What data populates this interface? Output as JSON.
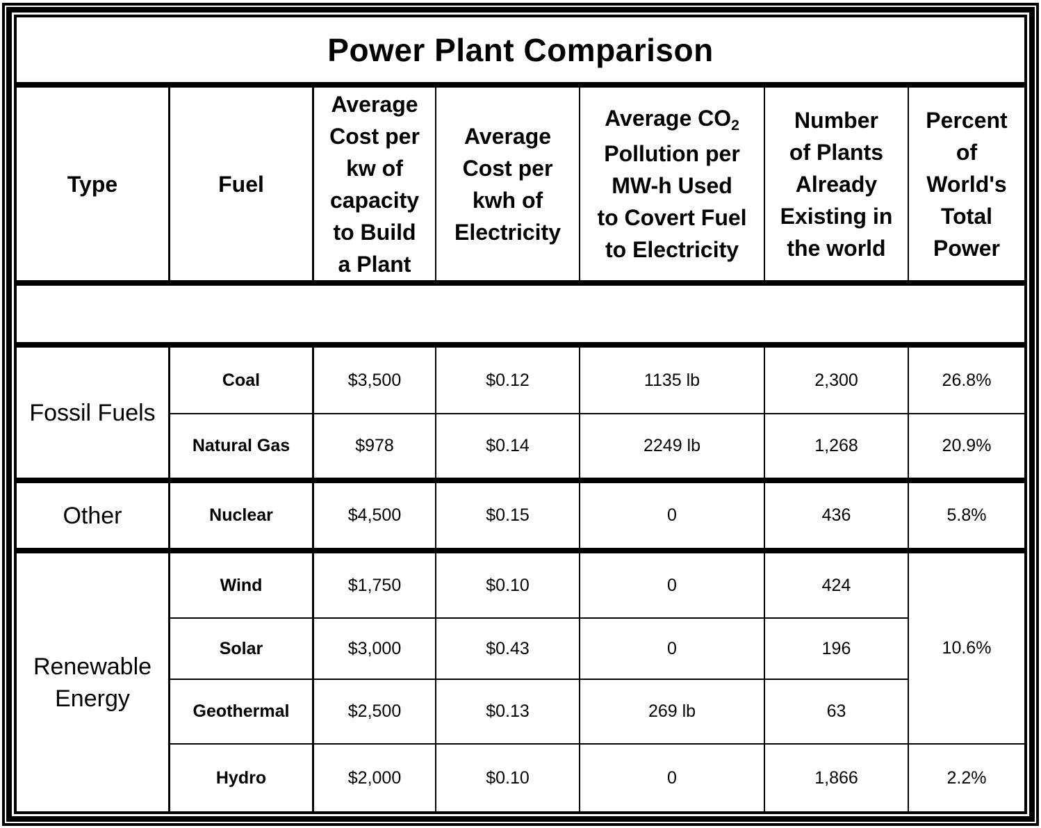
{
  "title": "Power Plant Comparison",
  "headers": {
    "type": "Type",
    "fuel": "Fuel",
    "cost_build": [
      "Average",
      "Cost per",
      "kw of",
      "capacity",
      "to Build",
      "a Plant"
    ],
    "cost_kwh": [
      "Average",
      "Cost per",
      "kwh of",
      "Electricity"
    ],
    "co2_line1_prefix": "Average CO",
    "co2_line1_sub": "2",
    "co2_rest": [
      "Pollution per",
      "MW-h Used",
      "to Covert Fuel",
      "to Electricity"
    ],
    "plants": [
      "Number",
      "of Plants",
      "Already",
      "Existing in",
      "the world"
    ],
    "percent": [
      "Percent",
      "of",
      "World's",
      "Total",
      "Power"
    ]
  },
  "groups": {
    "fossil": [
      "Fossil Fuels"
    ],
    "other": [
      "Other"
    ],
    "renewable": [
      "Renewable",
      "Energy"
    ]
  },
  "rows": [
    {
      "fuel": "Coal",
      "cost_build": "$3,500",
      "cost_kwh": "$0.12",
      "co2": "1135 lb",
      "plants": "2,300",
      "percent": "26.8%"
    },
    {
      "fuel": "Natural Gas",
      "cost_build": "$978",
      "cost_kwh": "$0.14",
      "co2": "2249 lb",
      "plants": "1,268",
      "percent": "20.9%"
    },
    {
      "fuel": "Nuclear",
      "cost_build": "$4,500",
      "cost_kwh": "$0.15",
      "co2": "0",
      "plants": "436",
      "percent": "5.8%"
    },
    {
      "fuel": "Wind",
      "cost_build": "$1,750",
      "cost_kwh": "$0.10",
      "co2": "0",
      "plants": "424"
    },
    {
      "fuel": "Solar",
      "cost_build": "$3,000",
      "cost_kwh": "$0.43",
      "co2": "0",
      "plants": "196"
    },
    {
      "fuel": "Geothermal",
      "cost_build": "$2,500",
      "cost_kwh": "$0.13",
      "co2": "269 lb",
      "plants": "63"
    },
    {
      "fuel": "Hydro",
      "cost_build": "$2,000",
      "cost_kwh": "$0.10",
      "co2": "0",
      "plants": "1,866",
      "percent": "2.2%"
    }
  ],
  "renewable_shared_percent": "10.6%"
}
